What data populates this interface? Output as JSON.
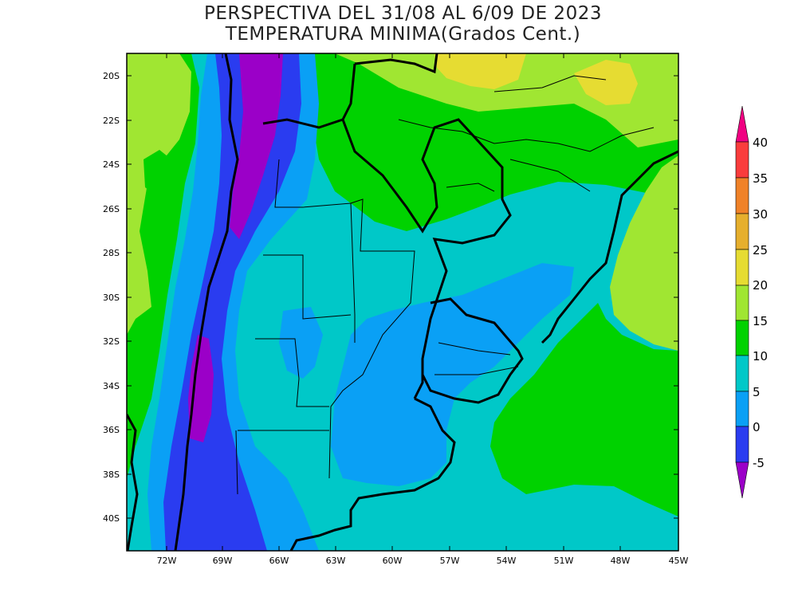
{
  "title": {
    "line1": "PERSPECTIVA DEL 31/08 AL 6/09 DE 2023",
    "line2": "TEMPERATURA MINIMA(Grados Cent.)"
  },
  "axes": {
    "lat_ticks": [
      "20S",
      "22S",
      "24S",
      "26S",
      "28S",
      "30S",
      "32S",
      "34S",
      "36S",
      "38S",
      "40S"
    ],
    "lon_ticks": [
      "72W",
      "69W",
      "66W",
      "63W",
      "60W",
      "57W",
      "54W",
      "51W",
      "48W",
      "45W"
    ]
  },
  "colorbar": {
    "labels": [
      "40",
      "35",
      "30",
      "25",
      "20",
      "15",
      "10",
      "5",
      "0",
      "-5"
    ],
    "colors": {
      "below_-5": "#9b00c8",
      "-5_0": "#2a3cf0",
      "0_5": "#0aa0f5",
      "5_10": "#00c8c8",
      "10_15": "#00d200",
      "15_20": "#a0e632",
      "20_25": "#e6dc32",
      "25_30": "#e6af2d",
      "30_35": "#f08228",
      "35_40": "#fa3c3c",
      "above_40": "#f00082"
    }
  }
}
